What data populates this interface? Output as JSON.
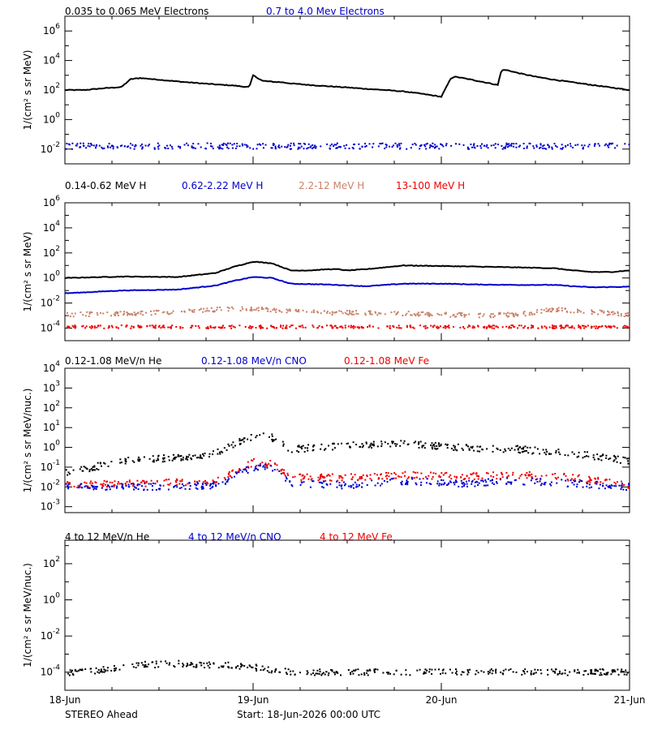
{
  "colors": {
    "axis": "#000000",
    "black_series": "#000000",
    "blue_series": "#0000cc",
    "tan_series": "#c8826a",
    "red_series": "#ee0000"
  },
  "chart_data": [
    {
      "type": "scatter",
      "log_y": true,
      "ylim_log10": [
        -3,
        7
      ],
      "ytick_exponents": [
        -2,
        0,
        2,
        4,
        6
      ],
      "ylabel": "1/(cm² s sr MeV)",
      "legend": [
        {
          "label": "0.035 to 0.065 MeV Electrons",
          "color": "#000000"
        },
        {
          "label": "0.7 to 4.0 Mev Electrons",
          "color": "#0000cc"
        }
      ],
      "series": [
        {
          "color": "#000000",
          "mode": "line",
          "x": [
            0,
            0.1,
            0.2,
            0.3,
            0.35,
            0.4,
            0.5,
            0.6,
            0.7,
            0.8,
            0.9,
            0.95,
            0.98,
            1.0,
            1.05,
            1.12,
            1.15,
            1.2,
            1.3,
            1.4,
            1.5,
            1.6,
            1.7,
            1.8,
            1.9,
            2.0,
            2.05,
            2.07,
            2.1,
            2.2,
            2.3,
            2.32,
            2.35,
            2.4,
            2.5,
            2.6,
            2.7,
            2.8,
            2.9,
            3.0
          ],
          "y": [
            100,
            100,
            130,
            160,
            550,
            650,
            500,
            380,
            300,
            240,
            200,
            170,
            160,
            1000,
            420,
            350,
            340,
            280,
            220,
            180,
            150,
            120,
            100,
            80,
            55,
            35,
            600,
            800,
            700,
            400,
            220,
            2300,
            2200,
            1500,
            800,
            500,
            330,
            220,
            150,
            100
          ]
        },
        {
          "color": "#0000cc",
          "mode": "scatter",
          "base_log10": -1.8,
          "spread": 0.4
        }
      ]
    },
    {
      "type": "scatter",
      "log_y": true,
      "ylim_log10": [
        -5,
        6
      ],
      "ytick_exponents": [
        -4,
        -2,
        0,
        2,
        4,
        6
      ],
      "ylabel": "1/(cm² s sr MeV)",
      "legend": [
        {
          "label": "0.14-0.62 MeV H",
          "color": "#000000"
        },
        {
          "label": "0.62-2.22 MeV H",
          "color": "#0000cc"
        },
        {
          "label": "2.2-12 MeV H",
          "color": "#c8826a"
        },
        {
          "label": "13-100 MeV H",
          "color": "#ee0000"
        }
      ],
      "series": [
        {
          "color": "#000000",
          "mode": "line",
          "x": [
            0,
            0.3,
            0.6,
            0.8,
            0.9,
            1.0,
            1.1,
            1.2,
            1.3,
            1.4,
            1.45,
            1.5,
            1.6,
            1.8,
            2.0,
            2.2,
            2.4,
            2.6,
            2.7,
            2.8,
            2.9,
            3.0
          ],
          "y": [
            1.0,
            1.3,
            1.2,
            2.5,
            8,
            20,
            15,
            4,
            4,
            5,
            5,
            4,
            5,
            10,
            9,
            8,
            7,
            6,
            4,
            3,
            3,
            4
          ]
        },
        {
          "color": "#0000cc",
          "mode": "line",
          "x": [
            0,
            0.3,
            0.6,
            0.8,
            0.9,
            1.0,
            1.1,
            1.2,
            1.4,
            1.6,
            1.8,
            2.0,
            2.2,
            2.4,
            2.6,
            2.7,
            2.8,
            3.0
          ],
          "y": [
            0.06,
            0.1,
            0.12,
            0.25,
            0.6,
            1.2,
            1.0,
            0.35,
            0.3,
            0.22,
            0.35,
            0.35,
            0.3,
            0.28,
            0.28,
            0.22,
            0.18,
            0.2
          ]
        },
        {
          "color": "#c8826a",
          "mode": "scatter",
          "x": [
            0,
            0.4,
            0.8,
            1.0,
            1.3,
            1.8,
            2.2,
            2.4,
            2.6,
            2.8,
            3.0
          ],
          "y": [
            0.0012,
            0.0015,
            0.003,
            0.0035,
            0.0018,
            0.0015,
            0.001,
            0.0012,
            0.003,
            0.002,
            0.0012
          ]
        },
        {
          "color": "#ee0000",
          "mode": "scatter",
          "base_log10": -3.9,
          "spread": 0.25
        }
      ]
    },
    {
      "type": "scatter",
      "log_y": true,
      "ylim_log10": [
        -3.3,
        4
      ],
      "ytick_exponents": [
        -3,
        -2,
        -1,
        0,
        1,
        2,
        3,
        4
      ],
      "ylabel": "1/(cm² s sr MeV/nuc.)",
      "legend": [
        {
          "label": "0.12-1.08 MeV/n He",
          "color": "#000000"
        },
        {
          "label": "0.12-1.08 MeV/n CNO",
          "color": "#0000cc"
        },
        {
          "label": "0.12-1.08 MeV Fe",
          "color": "#ee0000"
        }
      ],
      "series": [
        {
          "color": "#000000",
          "mode": "scatter",
          "x": [
            0,
            0.3,
            0.6,
            0.8,
            0.9,
            1.0,
            1.1,
            1.2,
            1.5,
            1.8,
            2.1,
            2.4,
            2.7,
            3.0
          ],
          "y": [
            0.05,
            0.2,
            0.3,
            0.5,
            1.5,
            4,
            3,
            0.8,
            1.2,
            1.5,
            1.0,
            0.8,
            0.5,
            0.2
          ]
        },
        {
          "color": "#ee0000",
          "mode": "scatter",
          "x": [
            0,
            0.4,
            0.8,
            0.95,
            1.0,
            1.1,
            1.2,
            1.5,
            1.8,
            2.1,
            2.4,
            2.7,
            3.0
          ],
          "y": [
            0.012,
            0.015,
            0.02,
            0.1,
            0.18,
            0.15,
            0.03,
            0.03,
            0.04,
            0.035,
            0.04,
            0.03,
            0.012
          ]
        },
        {
          "color": "#0000cc",
          "mode": "scatter",
          "x": [
            0,
            0.4,
            0.8,
            0.95,
            1.0,
            1.1,
            1.2,
            1.5,
            1.8,
            2.1,
            2.4,
            2.7,
            3.0
          ],
          "y": [
            0.01,
            0.01,
            0.012,
            0.06,
            0.1,
            0.08,
            0.015,
            0.012,
            0.02,
            0.015,
            0.02,
            0.015,
            0.01
          ]
        }
      ]
    },
    {
      "type": "scatter",
      "log_y": true,
      "ylim_log10": [
        -5,
        3.3
      ],
      "ytick_exponents": [
        -4,
        -2,
        0,
        2
      ],
      "ylabel": "1/(cm² s sr MeV/nuc.)",
      "legend": [
        {
          "label": "4 to 12 MeV/n He",
          "color": "#000000"
        },
        {
          "label": "4 to 12 MeV/n CNO",
          "color": "#0000cc"
        },
        {
          "label": "4 to 12 MeV Fe",
          "color": "#ee0000"
        }
      ],
      "series": [
        {
          "color": "#000000",
          "mode": "scatter",
          "x": [
            0.1,
            0.4,
            0.6,
            0.8,
            0.95,
            1.2,
            1.8,
            2.4,
            2.7
          ],
          "y": [
            0.0001,
            0.00025,
            0.0003,
            0.00025,
            0.00022,
            0.0001,
            0.0001,
            0.0001,
            0.0001
          ]
        }
      ]
    }
  ],
  "x_axis": {
    "xlim_days": [
      0,
      3
    ],
    "tick_labels": [
      "18-Jun",
      "19-Jun",
      "20-Jun",
      "21-Jun"
    ]
  },
  "footer": {
    "spacecraft": "STEREO Ahead",
    "start": "Start: 18-Jun-2026 00:00 UTC"
  }
}
